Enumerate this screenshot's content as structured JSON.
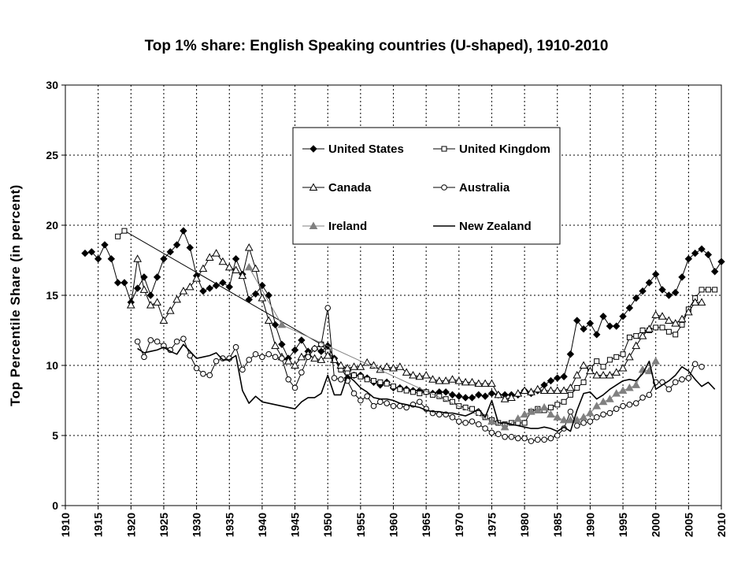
{
  "chart_data": {
    "type": "line",
    "title": "Top 1% share: English Speaking countries (U-shaped), 1910-2010",
    "xlabel": "",
    "ylabel": "Top Percentile Share (in percent)",
    "xlim": [
      1910,
      2010
    ],
    "ylim": [
      0,
      30
    ],
    "x_ticks": [
      "1910",
      "1915",
      "1920",
      "1925",
      "1930",
      "1935",
      "1940",
      "1945",
      "1950",
      "1955",
      "1960",
      "1965",
      "1970",
      "1975",
      "1980",
      "1985",
      "1990",
      "1995",
      "2000",
      "2005",
      "2010"
    ],
    "y_ticks": [
      "0",
      "5",
      "10",
      "15",
      "20",
      "25",
      "30"
    ],
    "grid": "dashed",
    "legend_position": "center-top",
    "series": [
      {
        "name": "United States",
        "color": "#000000",
        "marker": "diamond-filled",
        "x": [
          1913,
          1914,
          1915,
          1916,
          1917,
          1918,
          1919,
          1920,
          1921,
          1922,
          1923,
          1924,
          1925,
          1926,
          1927,
          1928,
          1929,
          1930,
          1931,
          1932,
          1933,
          1934,
          1935,
          1936,
          1937,
          1938,
          1939,
          1940,
          1941,
          1942,
          1943,
          1944,
          1945,
          1946,
          1947,
          1948,
          1949,
          1950,
          1951,
          1952,
          1953,
          1954,
          1955,
          1956,
          1957,
          1958,
          1959,
          1960,
          1961,
          1962,
          1963,
          1964,
          1965,
          1966,
          1967,
          1968,
          1969,
          1970,
          1971,
          1972,
          1973,
          1974,
          1975,
          1976,
          1977,
          1978,
          1979,
          1980,
          1981,
          1982,
          1983,
          1984,
          1985,
          1986,
          1987,
          1988,
          1989,
          1990,
          1991,
          1992,
          1993,
          1994,
          1995,
          1996,
          1997,
          1998,
          1999,
          2000,
          2001,
          2002,
          2003,
          2004,
          2005,
          2006,
          2007,
          2008,
          2009,
          2010
        ],
        "values": [
          18.0,
          18.1,
          17.6,
          18.6,
          17.6,
          15.9,
          15.9,
          14.5,
          15.5,
          16.3,
          15.0,
          16.3,
          17.6,
          18.1,
          18.6,
          19.6,
          18.4,
          16.4,
          15.3,
          15.5,
          15.7,
          15.9,
          15.6,
          17.6,
          16.5,
          14.7,
          15.1,
          15.7,
          15.0,
          12.9,
          11.5,
          10.5,
          11.1,
          11.8,
          11.0,
          11.2,
          11.0,
          11.4,
          10.5,
          9.8,
          9.1,
          9.3,
          9.3,
          9.1,
          8.8,
          8.6,
          8.8,
          8.4,
          8.4,
          8.3,
          8.2,
          8.2,
          8.1,
          8.0,
          8.1,
          8.1,
          7.9,
          7.8,
          7.7,
          7.7,
          7.9,
          7.8,
          8.0,
          7.9,
          7.9,
          7.9,
          7.9,
          8.2,
          8.0,
          8.2,
          8.6,
          8.9,
          9.1,
          9.2,
          10.8,
          13.2,
          12.6,
          13.0,
          12.2,
          13.5,
          12.8,
          12.8,
          13.5,
          14.1,
          14.8,
          15.3,
          15.9,
          16.5,
          15.4,
          15.0,
          15.2,
          16.3,
          17.6,
          18.0,
          18.3,
          17.9,
          16.7,
          17.4
        ]
      },
      {
        "name": "United Kingdom",
        "color": "#000000",
        "marker": "square-open",
        "x": [
          1918,
          1919,
          1949,
          1950,
          1951,
          1952,
          1953,
          1954,
          1955,
          1956,
          1957,
          1958,
          1959,
          1960,
          1961,
          1962,
          1963,
          1964,
          1965,
          1966,
          1967,
          1968,
          1969,
          1970,
          1971,
          1972,
          1973,
          1974,
          1975,
          1976,
          1977,
          1978,
          1979,
          1980,
          1981,
          1982,
          1983,
          1984,
          1985,
          1986,
          1987,
          1988,
          1989,
          1990,
          1991,
          1992,
          1993,
          1994,
          1995,
          1996,
          1997,
          1998,
          1999,
          2000,
          2001,
          2002,
          2003,
          2004,
          2005,
          2006,
          2007,
          2008,
          2009
        ],
        "values": [
          19.2,
          19.6,
          11.5,
          11.0,
          10.4,
          9.7,
          9.5,
          9.3,
          9.2,
          9.0,
          8.9,
          8.8,
          8.7,
          8.5,
          8.3,
          8.2,
          8.1,
          8.0,
          8.1,
          7.9,
          7.8,
          7.6,
          7.4,
          7.1,
          7.0,
          6.9,
          6.6,
          6.3,
          6.1,
          5.9,
          5.8,
          5.9,
          5.9,
          5.9,
          6.7,
          6.9,
          6.8,
          7.0,
          7.2,
          7.4,
          7.9,
          8.4,
          8.8,
          9.8,
          10.3,
          9.9,
          10.4,
          10.6,
          10.8,
          12.0,
          12.1,
          12.5,
          12.5,
          12.7,
          12.7,
          12.4,
          12.2,
          12.9,
          14.0,
          14.8,
          15.4,
          15.4,
          15.4
        ]
      },
      {
        "name": "Canada",
        "color": "#000000",
        "marker": "triangle-open",
        "x": [
          1920,
          1921,
          1922,
          1923,
          1924,
          1925,
          1926,
          1927,
          1928,
          1929,
          1930,
          1931,
          1932,
          1933,
          1934,
          1935,
          1936,
          1937,
          1938,
          1939,
          1940,
          1941,
          1942,
          1943,
          1944,
          1945,
          1946,
          1947,
          1948,
          1949,
          1950,
          1951,
          1952,
          1953,
          1954,
          1955,
          1956,
          1957,
          1958,
          1959,
          1960,
          1961,
          1962,
          1963,
          1964,
          1965,
          1966,
          1967,
          1968,
          1969,
          1970,
          1971,
          1972,
          1973,
          1974,
          1975,
          1976,
          1977,
          1978,
          1979,
          1980,
          1981,
          1982,
          1983,
          1984,
          1985,
          1986,
          1987,
          1988,
          1989,
          1990,
          1991,
          1992,
          1993,
          1994,
          1995,
          1996,
          1997,
          1998,
          1999,
          2000,
          2001,
          2002,
          2003,
          2004,
          2005,
          2006,
          2007
        ],
        "values": [
          14.3,
          17.6,
          15.4,
          14.3,
          14.5,
          13.2,
          13.9,
          14.7,
          15.3,
          15.6,
          16.2,
          16.9,
          17.7,
          18.0,
          17.4,
          17.0,
          16.8,
          16.4,
          18.4,
          16.9,
          14.8,
          13.2,
          11.4,
          10.6,
          10.3,
          10.0,
          10.6,
          10.8,
          10.5,
          10.4,
          10.7,
          10.4,
          10.0,
          9.8,
          9.9,
          9.9,
          10.2,
          10.0,
          9.7,
          9.9,
          9.8,
          9.9,
          9.5,
          9.3,
          9.2,
          9.3,
          9.0,
          8.9,
          8.9,
          9.0,
          8.9,
          8.8,
          8.8,
          8.7,
          8.7,
          8.7,
          7.9,
          7.6,
          7.7,
          8.0,
          8.2,
          8.1,
          8.3,
          8.2,
          8.2,
          8.2,
          8.2,
          8.4,
          9.3,
          10.0,
          9.6,
          9.3,
          9.3,
          9.3,
          9.5,
          9.8,
          10.6,
          11.4,
          12.1,
          12.6,
          13.6,
          13.5,
          13.2,
          13.0,
          13.3,
          13.8,
          14.5,
          14.5
        ]
      },
      {
        "name": "Australia",
        "color": "#000000",
        "marker": "circle-open",
        "x": [
          1921,
          1922,
          1923,
          1924,
          1925,
          1926,
          1927,
          1928,
          1929,
          1930,
          1931,
          1932,
          1933,
          1934,
          1935,
          1936,
          1937,
          1938,
          1939,
          1940,
          1941,
          1942,
          1943,
          1944,
          1945,
          1946,
          1947,
          1948,
          1949,
          1950,
          1951,
          1952,
          1953,
          1954,
          1955,
          1956,
          1957,
          1958,
          1959,
          1960,
          1961,
          1962,
          1963,
          1964,
          1965,
          1966,
          1967,
          1968,
          1969,
          1970,
          1971,
          1972,
          1973,
          1974,
          1975,
          1976,
          1977,
          1978,
          1979,
          1980,
          1981,
          1982,
          1983,
          1984,
          1985,
          1986,
          1987,
          1988,
          1989,
          1990,
          1991,
          1992,
          1993,
          1994,
          1995,
          1996,
          1997,
          1998,
          1999,
          2000,
          2001,
          2002,
          2003,
          2004,
          2005,
          2006,
          2007
        ],
        "values": [
          11.7,
          10.6,
          11.8,
          11.7,
          11.4,
          11.1,
          11.7,
          11.9,
          10.7,
          9.8,
          9.4,
          9.3,
          10.3,
          10.5,
          10.5,
          11.3,
          9.7,
          10.4,
          10.8,
          10.6,
          10.8,
          10.6,
          10.5,
          9.0,
          8.4,
          9.5,
          10.6,
          11.2,
          11.5,
          14.1,
          9.1,
          9.0,
          8.9,
          8.0,
          7.5,
          7.8,
          7.1,
          7.4,
          7.3,
          7.1,
          7.1,
          7.0,
          7.2,
          7.4,
          6.9,
          6.6,
          6.5,
          6.5,
          6.3,
          6.0,
          5.9,
          6.0,
          5.8,
          5.5,
          5.2,
          5.1,
          4.9,
          4.9,
          4.8,
          4.8,
          4.6,
          4.7,
          4.7,
          4.8,
          5.0,
          5.5,
          6.7,
          5.7,
          5.9,
          6.0,
          6.3,
          6.5,
          6.6,
          6.9,
          7.1,
          7.2,
          7.3,
          7.7,
          7.9,
          8.8,
          8.8,
          8.3,
          8.8,
          9.0,
          9.1,
          10.1,
          9.9
        ]
      },
      {
        "name": "Ireland",
        "color": "#808080",
        "marker": "triangle-filled",
        "x": [
          1938,
          1943,
          1975,
          1977,
          1979,
          1980,
          1981,
          1982,
          1983,
          1984,
          1985,
          1986,
          1987,
          1988,
          1989,
          1990,
          1991,
          1992,
          1993,
          1994,
          1995,
          1996,
          1997,
          1998,
          1999,
          2000
        ],
        "values": [
          17.0,
          12.9,
          6.0,
          5.6,
          6.2,
          6.5,
          6.7,
          6.8,
          7.0,
          6.5,
          6.3,
          6.1,
          6.1,
          6.1,
          6.3,
          6.6,
          7.1,
          7.4,
          7.6,
          8.0,
          8.2,
          8.4,
          8.6,
          9.7,
          9.6,
          10.3
        ]
      },
      {
        "name": "New Zealand",
        "color": "#000000",
        "marker": "none",
        "x": [
          1921,
          1922,
          1923,
          1924,
          1925,
          1926,
          1927,
          1928,
          1929,
          1930,
          1931,
          1932,
          1933,
          1934,
          1935,
          1936,
          1937,
          1938,
          1939,
          1940,
          1945,
          1946,
          1947,
          1948,
          1949,
          1950,
          1951,
          1952,
          1953,
          1954,
          1955,
          1956,
          1957,
          1958,
          1959,
          1960,
          1961,
          1962,
          1963,
          1964,
          1965,
          1966,
          1967,
          1968,
          1969,
          1970,
          1971,
          1972,
          1973,
          1974,
          1975,
          1976,
          1977,
          1978,
          1979,
          1980,
          1981,
          1982,
          1983,
          1984,
          1985,
          1986,
          1987,
          1988,
          1989,
          1990,
          1991,
          1992,
          1993,
          1994,
          1995,
          1996,
          1997,
          1998,
          1999,
          2000,
          2001,
          2002,
          2003,
          2004,
          2005,
          2006,
          2007,
          2008,
          2009
        ],
        "values": [
          11.2,
          10.9,
          11.0,
          11.1,
          11.3,
          11.0,
          10.8,
          11.5,
          11.0,
          10.5,
          10.6,
          10.7,
          10.9,
          10.4,
          10.4,
          10.7,
          8.2,
          7.3,
          7.8,
          7.4,
          6.9,
          7.4,
          7.7,
          7.7,
          8.0,
          9.3,
          7.9,
          7.9,
          9.3,
          8.9,
          8.4,
          8.1,
          7.7,
          7.6,
          7.6,
          7.5,
          7.3,
          7.2,
          7.1,
          7.0,
          6.8,
          6.7,
          6.7,
          6.6,
          6.6,
          6.5,
          6.4,
          6.6,
          6.9,
          6.3,
          7.5,
          5.9,
          5.9,
          5.8,
          5.7,
          5.6,
          5.5,
          5.5,
          5.6,
          5.5,
          5.3,
          5.6,
          5.3,
          6.8,
          8.0,
          8.1,
          7.6,
          7.9,
          8.3,
          8.6,
          8.9,
          9.0,
          8.9,
          9.4,
          10.3,
          8.3,
          8.6,
          8.9,
          9.3,
          9.9,
          9.6,
          9.0,
          8.5,
          8.8,
          8.3
        ]
      }
    ]
  }
}
